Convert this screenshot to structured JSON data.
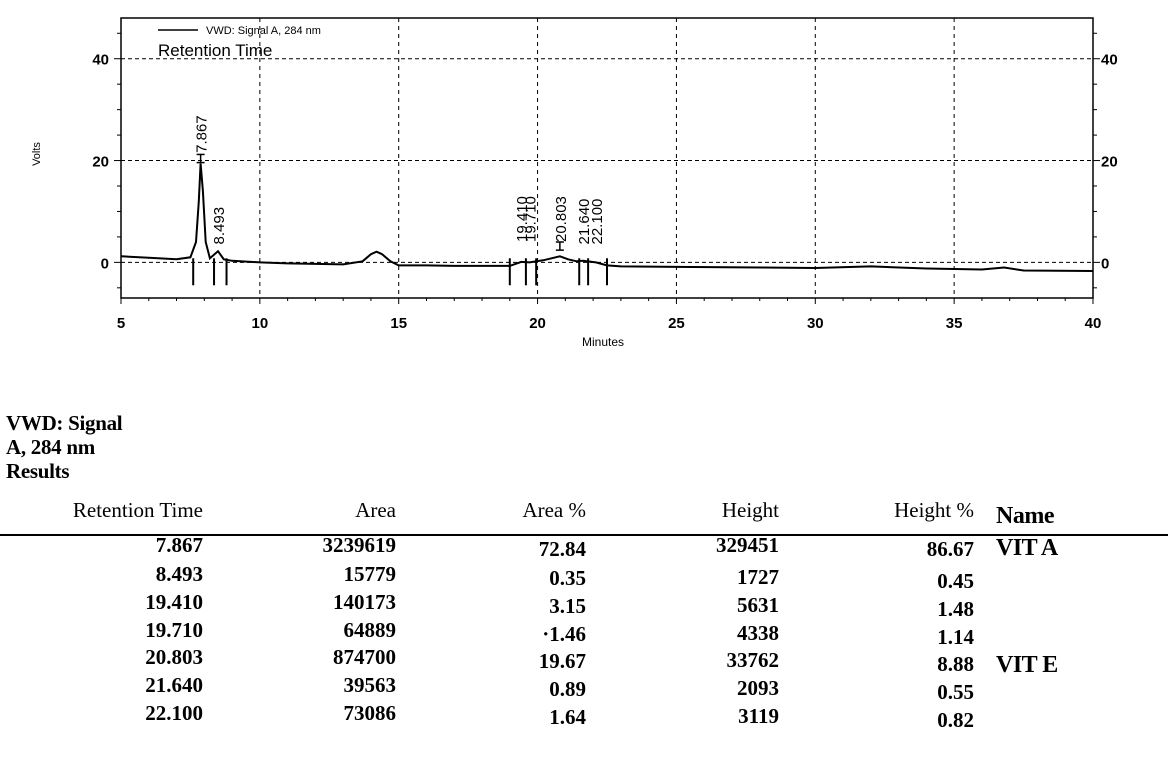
{
  "chart_data": {
    "type": "line",
    "legend": "VWD: Signal A, 284 nm",
    "legend_subtitle": "Retention Time",
    "xlabel": "Minutes",
    "ylabel": "Volts",
    "xlim": [
      5,
      40
    ],
    "ylim": [
      -7,
      48
    ],
    "x_ticks": [
      5,
      10,
      15,
      20,
      25,
      30,
      35,
      40
    ],
    "y_ticks_left": [
      0,
      20,
      40
    ],
    "y_ticks_right": [
      0,
      20,
      40
    ],
    "grid": true,
    "legend_position": "top-left",
    "peak_labels": [
      "7.867",
      "8.493",
      "19.410",
      "19.710",
      "20.803",
      "21.640",
      "22.100"
    ],
    "series": [
      {
        "x": [
          5.0,
          6.0,
          7.0,
          7.5,
          7.7,
          7.8,
          7.867,
          7.95,
          8.05,
          8.2,
          8.493,
          8.7,
          9.0,
          10.0,
          11.0,
          12.0,
          13.0,
          13.7,
          14.0,
          14.2,
          14.4,
          14.7,
          15.0,
          16.0,
          17.0,
          18.0,
          19.0,
          19.41,
          19.71,
          20.2,
          20.5,
          20.803,
          21.1,
          21.4,
          21.64,
          22.1,
          22.5,
          23.0,
          25.0,
          28.0,
          30.0,
          32.0,
          34.0,
          36.0,
          36.8,
          37.5,
          40.0
        ],
        "y": [
          1.2,
          0.9,
          0.6,
          1.0,
          4.0,
          12.0,
          19.4,
          14.0,
          4.0,
          0.8,
          2.2,
          0.6,
          0.3,
          0.0,
          -0.2,
          -0.3,
          -0.4,
          0.2,
          1.6,
          2.1,
          1.6,
          0.2,
          -0.6,
          -0.6,
          -0.7,
          -0.7,
          -0.7,
          0.1,
          0.0,
          0.4,
          0.8,
          1.2,
          0.6,
          0.2,
          0.3,
          0.0,
          -0.6,
          -0.8,
          -0.9,
          -1.0,
          -1.1,
          -0.8,
          -1.2,
          -1.4,
          -1.0,
          -1.6,
          -1.7
        ]
      }
    ]
  },
  "results": {
    "heading_lines": [
      "VWD: Signal",
      "A, 284 nm",
      "Results"
    ],
    "columns": [
      "Retention Time",
      "Area",
      "Area %",
      "Height",
      "Height %",
      "Name"
    ],
    "rows": [
      [
        "7.867",
        "3239619",
        "72.84",
        "329451",
        "86.67",
        "VIT A"
      ],
      [
        "8.493",
        "15779",
        "0.35",
        "1727",
        "0.45",
        ""
      ],
      [
        "19.410",
        "140173",
        "3.15",
        "5631",
        "1.48",
        ""
      ],
      [
        "19.710",
        "64889",
        "·1.46",
        "4338",
        "1.14",
        ""
      ],
      [
        "20.803",
        "874700",
        "19.67",
        "33762",
        "8.88",
        "VIT E"
      ],
      [
        "21.640",
        "39563",
        "0.89",
        "2093",
        "0.55",
        ""
      ],
      [
        "22.100",
        "73086",
        "1.64",
        "3119",
        "0.82",
        ""
      ]
    ]
  }
}
